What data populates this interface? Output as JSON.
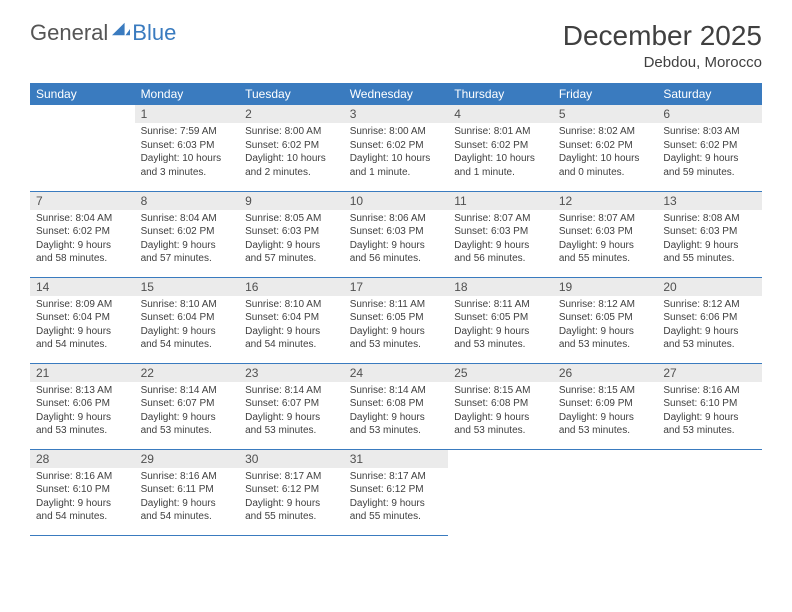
{
  "brand": {
    "part1": "General",
    "part2": "Blue"
  },
  "title": "December 2025",
  "location": "Debdou, Morocco",
  "colors": {
    "header_bg": "#3a7bbf",
    "header_text": "#ffffff",
    "daynum_bg": "#ebebeb",
    "body_text": "#404040",
    "rule": "#3a7bbf"
  },
  "typography": {
    "title_size": 28,
    "location_size": 15,
    "weekday_size": 12,
    "daynum_size": 12,
    "cell_size": 10
  },
  "layout": {
    "first_weekday_offset": 1,
    "days_in_month": 31,
    "columns": 7,
    "rows": 5
  },
  "weekdays": [
    "Sunday",
    "Monday",
    "Tuesday",
    "Wednesday",
    "Thursday",
    "Friday",
    "Saturday"
  ],
  "days": [
    {
      "n": 1,
      "sr": "7:59 AM",
      "ss": "6:03 PM",
      "dl": "10 hours and 3 minutes."
    },
    {
      "n": 2,
      "sr": "8:00 AM",
      "ss": "6:02 PM",
      "dl": "10 hours and 2 minutes."
    },
    {
      "n": 3,
      "sr": "8:00 AM",
      "ss": "6:02 PM",
      "dl": "10 hours and 1 minute."
    },
    {
      "n": 4,
      "sr": "8:01 AM",
      "ss": "6:02 PM",
      "dl": "10 hours and 1 minute."
    },
    {
      "n": 5,
      "sr": "8:02 AM",
      "ss": "6:02 PM",
      "dl": "10 hours and 0 minutes."
    },
    {
      "n": 6,
      "sr": "8:03 AM",
      "ss": "6:02 PM",
      "dl": "9 hours and 59 minutes."
    },
    {
      "n": 7,
      "sr": "8:04 AM",
      "ss": "6:02 PM",
      "dl": "9 hours and 58 minutes."
    },
    {
      "n": 8,
      "sr": "8:04 AM",
      "ss": "6:02 PM",
      "dl": "9 hours and 57 minutes."
    },
    {
      "n": 9,
      "sr": "8:05 AM",
      "ss": "6:03 PM",
      "dl": "9 hours and 57 minutes."
    },
    {
      "n": 10,
      "sr": "8:06 AM",
      "ss": "6:03 PM",
      "dl": "9 hours and 56 minutes."
    },
    {
      "n": 11,
      "sr": "8:07 AM",
      "ss": "6:03 PM",
      "dl": "9 hours and 56 minutes."
    },
    {
      "n": 12,
      "sr": "8:07 AM",
      "ss": "6:03 PM",
      "dl": "9 hours and 55 minutes."
    },
    {
      "n": 13,
      "sr": "8:08 AM",
      "ss": "6:03 PM",
      "dl": "9 hours and 55 minutes."
    },
    {
      "n": 14,
      "sr": "8:09 AM",
      "ss": "6:04 PM",
      "dl": "9 hours and 54 minutes."
    },
    {
      "n": 15,
      "sr": "8:10 AM",
      "ss": "6:04 PM",
      "dl": "9 hours and 54 minutes."
    },
    {
      "n": 16,
      "sr": "8:10 AM",
      "ss": "6:04 PM",
      "dl": "9 hours and 54 minutes."
    },
    {
      "n": 17,
      "sr": "8:11 AM",
      "ss": "6:05 PM",
      "dl": "9 hours and 53 minutes."
    },
    {
      "n": 18,
      "sr": "8:11 AM",
      "ss": "6:05 PM",
      "dl": "9 hours and 53 minutes."
    },
    {
      "n": 19,
      "sr": "8:12 AM",
      "ss": "6:05 PM",
      "dl": "9 hours and 53 minutes."
    },
    {
      "n": 20,
      "sr": "8:12 AM",
      "ss": "6:06 PM",
      "dl": "9 hours and 53 minutes."
    },
    {
      "n": 21,
      "sr": "8:13 AM",
      "ss": "6:06 PM",
      "dl": "9 hours and 53 minutes."
    },
    {
      "n": 22,
      "sr": "8:14 AM",
      "ss": "6:07 PM",
      "dl": "9 hours and 53 minutes."
    },
    {
      "n": 23,
      "sr": "8:14 AM",
      "ss": "6:07 PM",
      "dl": "9 hours and 53 minutes."
    },
    {
      "n": 24,
      "sr": "8:14 AM",
      "ss": "6:08 PM",
      "dl": "9 hours and 53 minutes."
    },
    {
      "n": 25,
      "sr": "8:15 AM",
      "ss": "6:08 PM",
      "dl": "9 hours and 53 minutes."
    },
    {
      "n": 26,
      "sr": "8:15 AM",
      "ss": "6:09 PM",
      "dl": "9 hours and 53 minutes."
    },
    {
      "n": 27,
      "sr": "8:16 AM",
      "ss": "6:10 PM",
      "dl": "9 hours and 53 minutes."
    },
    {
      "n": 28,
      "sr": "8:16 AM",
      "ss": "6:10 PM",
      "dl": "9 hours and 54 minutes."
    },
    {
      "n": 29,
      "sr": "8:16 AM",
      "ss": "6:11 PM",
      "dl": "9 hours and 54 minutes."
    },
    {
      "n": 30,
      "sr": "8:17 AM",
      "ss": "6:12 PM",
      "dl": "9 hours and 55 minutes."
    },
    {
      "n": 31,
      "sr": "8:17 AM",
      "ss": "6:12 PM",
      "dl": "9 hours and 55 minutes."
    }
  ],
  "labels": {
    "sunrise": "Sunrise:",
    "sunset": "Sunset:",
    "daylight": "Daylight:"
  }
}
